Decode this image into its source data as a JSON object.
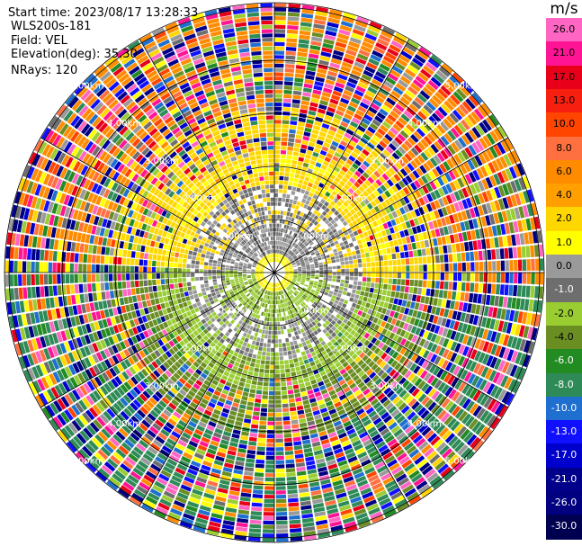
{
  "info": {
    "start_time": "Start time: 2023/08/17 13:28:33",
    "instrument": "WLS200s-181",
    "field": "Field: VEL",
    "elevation": "Elevation(deg): 35.30",
    "nrays": "NRays: 120"
  },
  "rings": {
    "labels": [
      "1.00km",
      "2.00km",
      "3.00km",
      "4.00km",
      "5.00km"
    ]
  },
  "colorbar": {
    "unit": "m/s",
    "ticks": [
      "26.0",
      "21.0",
      "17.0",
      "13.0",
      "10.0",
      "8.0",
      "6.0",
      "4.0",
      "2.0",
      "1.0",
      "0.0",
      "-1.0",
      "-2.0",
      "-4.0",
      "-6.0",
      "-8.0",
      "-10.0",
      "-13.0",
      "-17.0",
      "-21.0",
      "-26.0",
      "-30.0"
    ],
    "colors": [
      "#ff66c4",
      "#ff1493",
      "#e8001a",
      "#f72010",
      "#ff4500",
      "#ff7040",
      "#ff8c00",
      "#ffa000",
      "#ffd700",
      "#ffff00",
      "#9a9a9a",
      "#6e6e6e",
      "#9acd32",
      "#6b8e23",
      "#228b22",
      "#2e8b57",
      "#1e6fd0",
      "#1010ff",
      "#0000cd",
      "#00008b",
      "#000080",
      "#000050"
    ],
    "text_colors": [
      "#000000",
      "#000000",
      "#000000",
      "#000000",
      "#000000",
      "#000000",
      "#000000",
      "#000000",
      "#000000",
      "#000000",
      "#000000",
      "#ffffff",
      "#000000",
      "#000000",
      "#ffffff",
      "#ffffff",
      "#ffffff",
      "#ffffff",
      "#ffffff",
      "#ffffff",
      "#ffffff",
      "#ffffff"
    ]
  }
}
